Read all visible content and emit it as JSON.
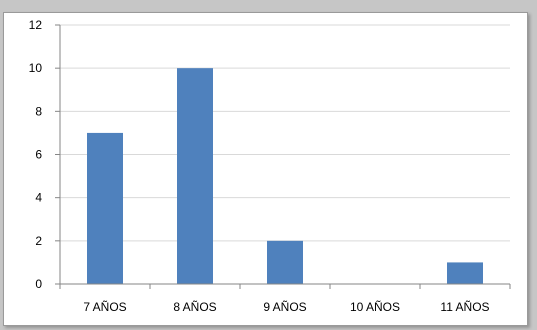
{
  "chart_data": {
    "type": "bar",
    "title": "",
    "xlabel": "",
    "ylabel": "",
    "categories": [
      "7 AÑOS",
      "8 AÑOS",
      "9 AÑOS",
      "10 AÑOS",
      "11 AÑOS"
    ],
    "values": [
      7,
      10,
      2,
      0,
      1
    ],
    "ylim": [
      0,
      12
    ],
    "yticks": [
      0,
      2,
      4,
      6,
      8,
      10,
      12
    ],
    "grid": true,
    "legend": "none",
    "bar_color": "#4f81bd",
    "grid_color": "#d9d9d9"
  }
}
